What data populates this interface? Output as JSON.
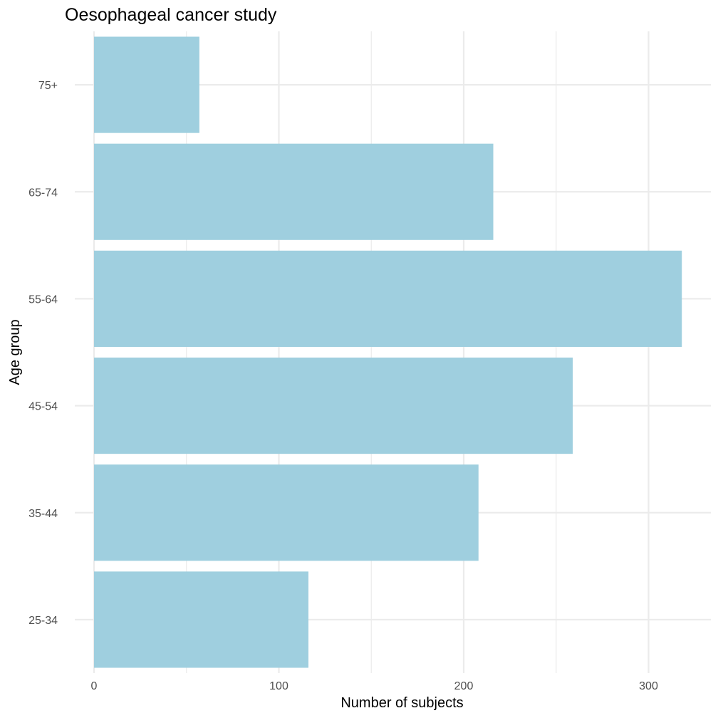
{
  "chart_data": {
    "type": "bar",
    "orientation": "horizontal",
    "title": "Oesophageal cancer study",
    "xlabel": "Number of subjects",
    "ylabel": "Age group",
    "categories": [
      "25-34",
      "35-44",
      "45-54",
      "55-64",
      "65-74",
      "75+"
    ],
    "values": [
      116,
      208,
      259,
      318,
      216,
      57
    ],
    "xlim": [
      0,
      330
    ],
    "xticks": [
      0,
      100,
      200,
      300
    ],
    "grid": true,
    "bar_color": "#9FCFDF",
    "grid_color": "#EBEBEB",
    "background": "#FFFFFF"
  }
}
